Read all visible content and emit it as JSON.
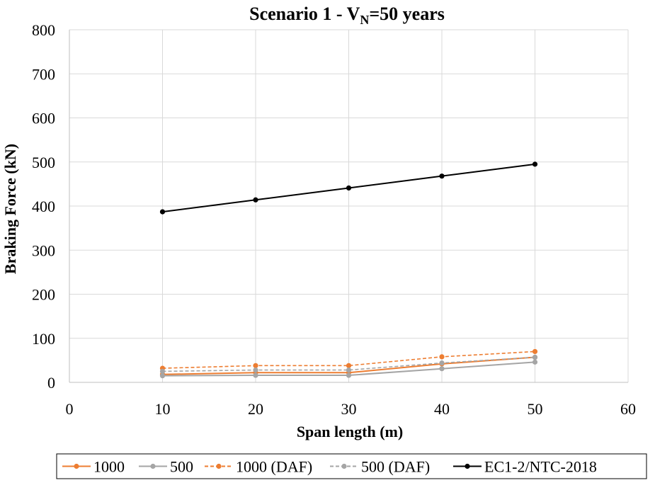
{
  "chart_data": {
    "type": "line",
    "title": "Scenario 1 - V",
    "title_sub": "N",
    "title_suffix": "=50 years",
    "xlabel": "Span length (m)",
    "ylabel": "Braking Force (kN)",
    "xlim": [
      0,
      60
    ],
    "ylim": [
      0,
      800
    ],
    "xticks": [
      0,
      10,
      20,
      30,
      40,
      50,
      60
    ],
    "yticks": [
      0,
      100,
      200,
      300,
      400,
      500,
      600,
      700,
      800
    ],
    "grid": true,
    "legend_position": "bottom",
    "x": [
      10,
      20,
      30,
      40,
      50
    ],
    "series": [
      {
        "name": "1000",
        "values": [
          18,
          22,
          22,
          42,
          57
        ],
        "color": "#ED7D31",
        "dash": "solid"
      },
      {
        "name": "500",
        "values": [
          15,
          16,
          16,
          31,
          46
        ],
        "color": "#A5A5A5",
        "dash": "solid"
      },
      {
        "name": "1000 (DAF)",
        "values": [
          32,
          38,
          38,
          58,
          70
        ],
        "color": "#ED7D31",
        "dash": "dashed"
      },
      {
        "name": "500 (DAF)",
        "values": [
          25,
          28,
          28,
          44,
          57
        ],
        "color": "#A5A5A5",
        "dash": "dashed"
      },
      {
        "name": "EC1-2/NTC-2018",
        "values": [
          387,
          414,
          441,
          468,
          495
        ],
        "color": "#000000",
        "dash": "solid"
      }
    ]
  }
}
